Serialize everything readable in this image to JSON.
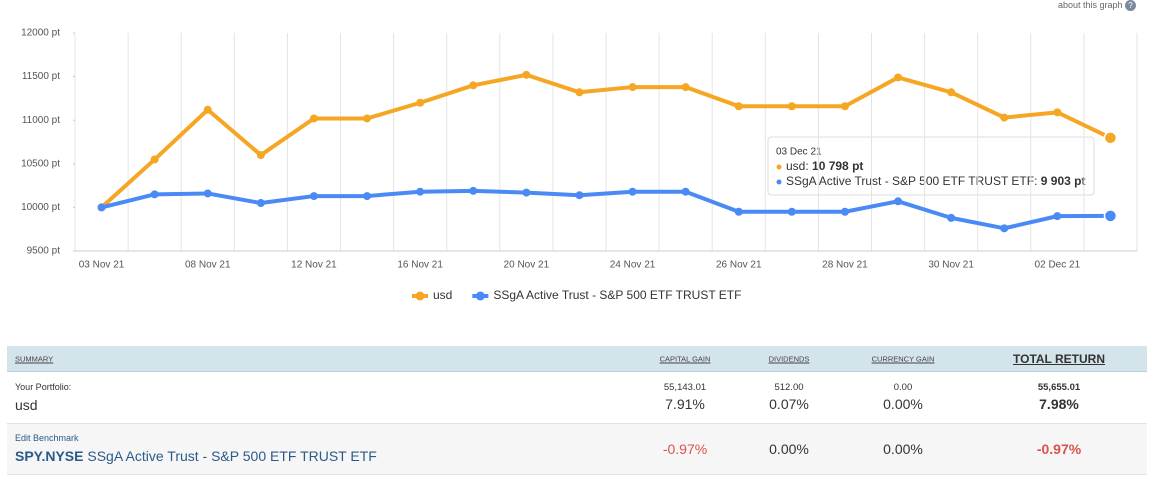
{
  "about": "about this graph",
  "chart_data": {
    "type": "line",
    "categories": [
      "03 Nov 21",
      null,
      "08 Nov 21",
      null,
      "12 Nov 21",
      null,
      "16 Nov 21",
      null,
      "20 Nov 21",
      null,
      "24 Nov 21",
      null,
      "26 Nov 21",
      null,
      "28 Nov 21",
      null,
      "30 Nov 21",
      null,
      "02 Dec 21",
      null
    ],
    "series": [
      {
        "name": "usd",
        "color": "#f5a623",
        "values": [
          10000,
          10550,
          11120,
          10600,
          11020,
          11020,
          11200,
          11400,
          11520,
          11320,
          11380,
          11380,
          11160,
          11160,
          11160,
          11490,
          11320,
          11030,
          11090,
          10798
        ]
      },
      {
        "name": "SSgA Active Trust - S&P 500 ETF TRUST ETF",
        "color": "#4a8af4",
        "values": [
          10000,
          10150,
          10160,
          10050,
          10130,
          10130,
          10180,
          10190,
          10170,
          10140,
          10180,
          10180,
          9950,
          9950,
          9950,
          10070,
          9880,
          9760,
          9900,
          9903
        ]
      }
    ],
    "ylim": [
      9500,
      12000
    ],
    "yticks": [
      {
        "value": 9500,
        "label": "9500 pt"
      },
      {
        "value": 10000,
        "label": "10000 pt"
      },
      {
        "value": 10500,
        "label": "10500 pt"
      },
      {
        "value": 11000,
        "label": "11000 pt"
      },
      {
        "value": 11500,
        "label": "11500 pt"
      },
      {
        "value": 12000,
        "label": "12000 pt"
      }
    ],
    "grid": true,
    "tooltip": {
      "title": "03 Dec 21",
      "items": [
        {
          "label": "usd:",
          "value": "10 798 pt"
        },
        {
          "label": "SSgA Active Trust - S&P 500 ETF TRUST ETF:",
          "value": "9 903 pt"
        }
      ]
    }
  },
  "table": {
    "headers": [
      "SUMMARY",
      "CAPITAL GAIN",
      "DIVIDENDS",
      "CURRENCY GAIN",
      "TOTAL RETURN"
    ],
    "rows": [
      {
        "caption": "Your Portfolio:",
        "label": "usd",
        "cells": [
          [
            "55,143.01",
            "7.91%"
          ],
          [
            "512.00",
            "0.07%"
          ],
          [
            "0.00",
            "0.00%"
          ],
          [
            "55,655.01",
            "7.98%"
          ]
        ]
      },
      {
        "caption": "Edit Benchmark",
        "ticker": "SPY.NYSE",
        "label": "SSgA Active Trust - S&P 500 ETF TRUST ETF",
        "cells": [
          [
            "-0.97%"
          ],
          [
            "0.00%"
          ],
          [
            "0.00%"
          ],
          [
            "-0.97%"
          ]
        ]
      }
    ]
  }
}
